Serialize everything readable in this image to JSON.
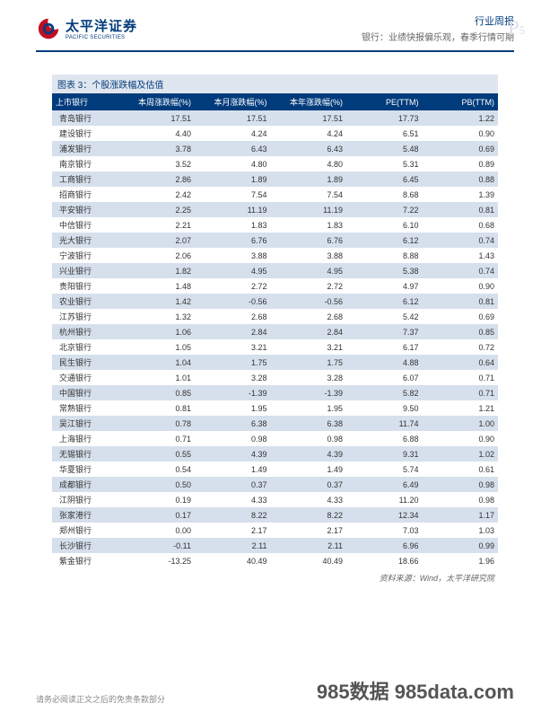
{
  "header": {
    "company_cn": "太平洋证券",
    "company_en": "PACIFIC SECURITIES",
    "report_type": "行业周报",
    "subtitle": "银行：业绩快报偏乐观，春季行情可期",
    "page_prefix": "P",
    "page_number": "5"
  },
  "table": {
    "title": "图表 3：个股涨跌幅及估值",
    "columns": [
      "上市银行",
      "本周涨跌幅(%)",
      "本月涨跌幅(%)",
      "本年涨跌幅(%)",
      "PE(TTM)",
      "PB(TTM)"
    ],
    "rows": [
      [
        "青岛银行",
        "17.51",
        "17.51",
        "17.51",
        "17.73",
        "1.22"
      ],
      [
        "建设银行",
        "4.40",
        "4.24",
        "4.24",
        "6.51",
        "0.90"
      ],
      [
        "浦发银行",
        "3.78",
        "6.43",
        "6.43",
        "5.48",
        "0.69"
      ],
      [
        "南京银行",
        "3.52",
        "4.80",
        "4.80",
        "5.31",
        "0.89"
      ],
      [
        "工商银行",
        "2.86",
        "1.89",
        "1.89",
        "6.45",
        "0.88"
      ],
      [
        "招商银行",
        "2.42",
        "7.54",
        "7.54",
        "8.68",
        "1.39"
      ],
      [
        "平安银行",
        "2.25",
        "11.19",
        "11.19",
        "7.22",
        "0.81"
      ],
      [
        "中信银行",
        "2.21",
        "1.83",
        "1.83",
        "6.10",
        "0.68"
      ],
      [
        "光大银行",
        "2.07",
        "6.76",
        "6.76",
        "6.12",
        "0.74"
      ],
      [
        "宁波银行",
        "2.06",
        "3.88",
        "3.88",
        "8.88",
        "1.43"
      ],
      [
        "兴业银行",
        "1.82",
        "4.95",
        "4.95",
        "5.38",
        "0.74"
      ],
      [
        "贵阳银行",
        "1.48",
        "2.72",
        "2.72",
        "4.97",
        "0.90"
      ],
      [
        "农业银行",
        "1.42",
        "-0.56",
        "-0.56",
        "6.12",
        "0.81"
      ],
      [
        "江苏银行",
        "1.32",
        "2.68",
        "2.68",
        "5.42",
        "0.69"
      ],
      [
        "杭州银行",
        "1.06",
        "2.84",
        "2.84",
        "7.37",
        "0.85"
      ],
      [
        "北京银行",
        "1.05",
        "3.21",
        "3.21",
        "6.17",
        "0.72"
      ],
      [
        "民生银行",
        "1.04",
        "1.75",
        "1.75",
        "4.88",
        "0.64"
      ],
      [
        "交通银行",
        "1.01",
        "3.28",
        "3.28",
        "6.07",
        "0.71"
      ],
      [
        "中国银行",
        "0.85",
        "-1.39",
        "-1.39",
        "5.82",
        "0.71"
      ],
      [
        "常熟银行",
        "0.81",
        "1.95",
        "1.95",
        "9.50",
        "1.21"
      ],
      [
        "吴江银行",
        "0.78",
        "6.38",
        "6.38",
        "11.74",
        "1.00"
      ],
      [
        "上海银行",
        "0.71",
        "0.98",
        "0.98",
        "6.88",
        "0.90"
      ],
      [
        "无锡银行",
        "0.55",
        "4.39",
        "4.39",
        "9.31",
        "1.02"
      ],
      [
        "华夏银行",
        "0.54",
        "1.49",
        "1.49",
        "5.74",
        "0.61"
      ],
      [
        "成都银行",
        "0.50",
        "0.37",
        "0.37",
        "6.49",
        "0.98"
      ],
      [
        "江阴银行",
        "0.19",
        "4.33",
        "4.33",
        "11.20",
        "0.98"
      ],
      [
        "张家港行",
        "0.17",
        "8.22",
        "8.22",
        "12.34",
        "1.17"
      ],
      [
        "郑州银行",
        "0.00",
        "2.17",
        "2.17",
        "7.03",
        "1.03"
      ],
      [
        "长沙银行",
        "-0.11",
        "2.11",
        "2.11",
        "6.96",
        "0.99"
      ],
      [
        "紫金银行",
        "-13.25",
        "40.49",
        "40.49",
        "18.66",
        "1.96"
      ]
    ],
    "source": "资料来源：Wind，太平洋研究院"
  },
  "footer": {
    "disclaimer": "请务必阅读正文之后的免责条款部分",
    "watermark": "985数据 985data.com"
  },
  "colors": {
    "header_blue": "#003b7c",
    "row_odd": "#d6e0ec",
    "row_even": "#ffffff",
    "title_bar": "#e0e6ef",
    "logo_red": "#c30d23"
  }
}
